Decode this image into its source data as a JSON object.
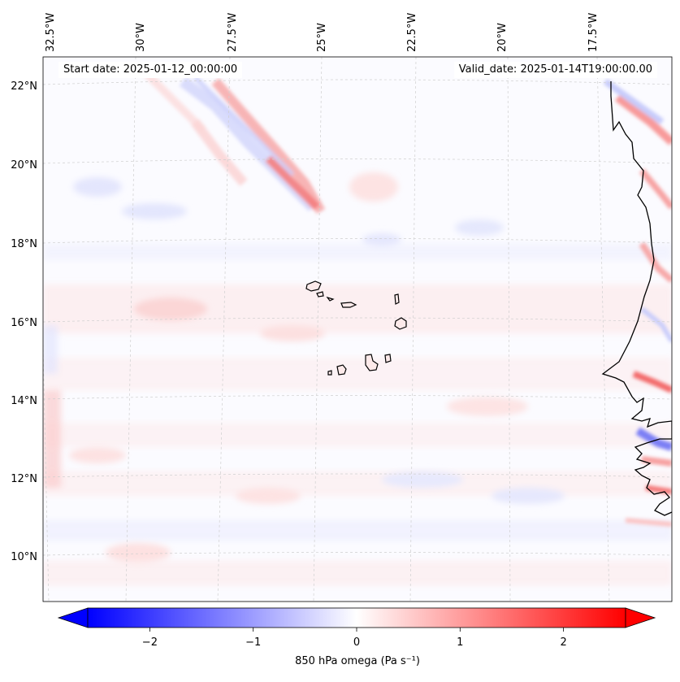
{
  "header": {
    "start_date": "Start date: 2025-01-12_00:00:00",
    "valid_date": "Valid_date: 2025-01-14T19:00:00.00"
  },
  "map": {
    "lon_labels": [
      "32.5°W",
      "30°W",
      "27.5°W",
      "25°W",
      "22.5°W",
      "20°W",
      "17.5°W"
    ],
    "lat_labels": [
      "22°N",
      "20°N",
      "18°N",
      "16°N",
      "14°N",
      "12°N",
      "10°N"
    ],
    "gridlines": true
  },
  "colorbar": {
    "ticks": [
      "−2",
      "−1",
      "0",
      "1",
      "2"
    ],
    "tick_values": [
      -2,
      -1,
      0,
      1,
      2
    ],
    "range": [
      -2.6,
      2.6
    ],
    "extend": "both",
    "colormap": "bwr",
    "title": "850 hPa omega (Pa s⁻¹)",
    "colors": {
      "negative": "#0000ff",
      "zero": "#ffffff",
      "positive": "#ff0000"
    }
  }
}
